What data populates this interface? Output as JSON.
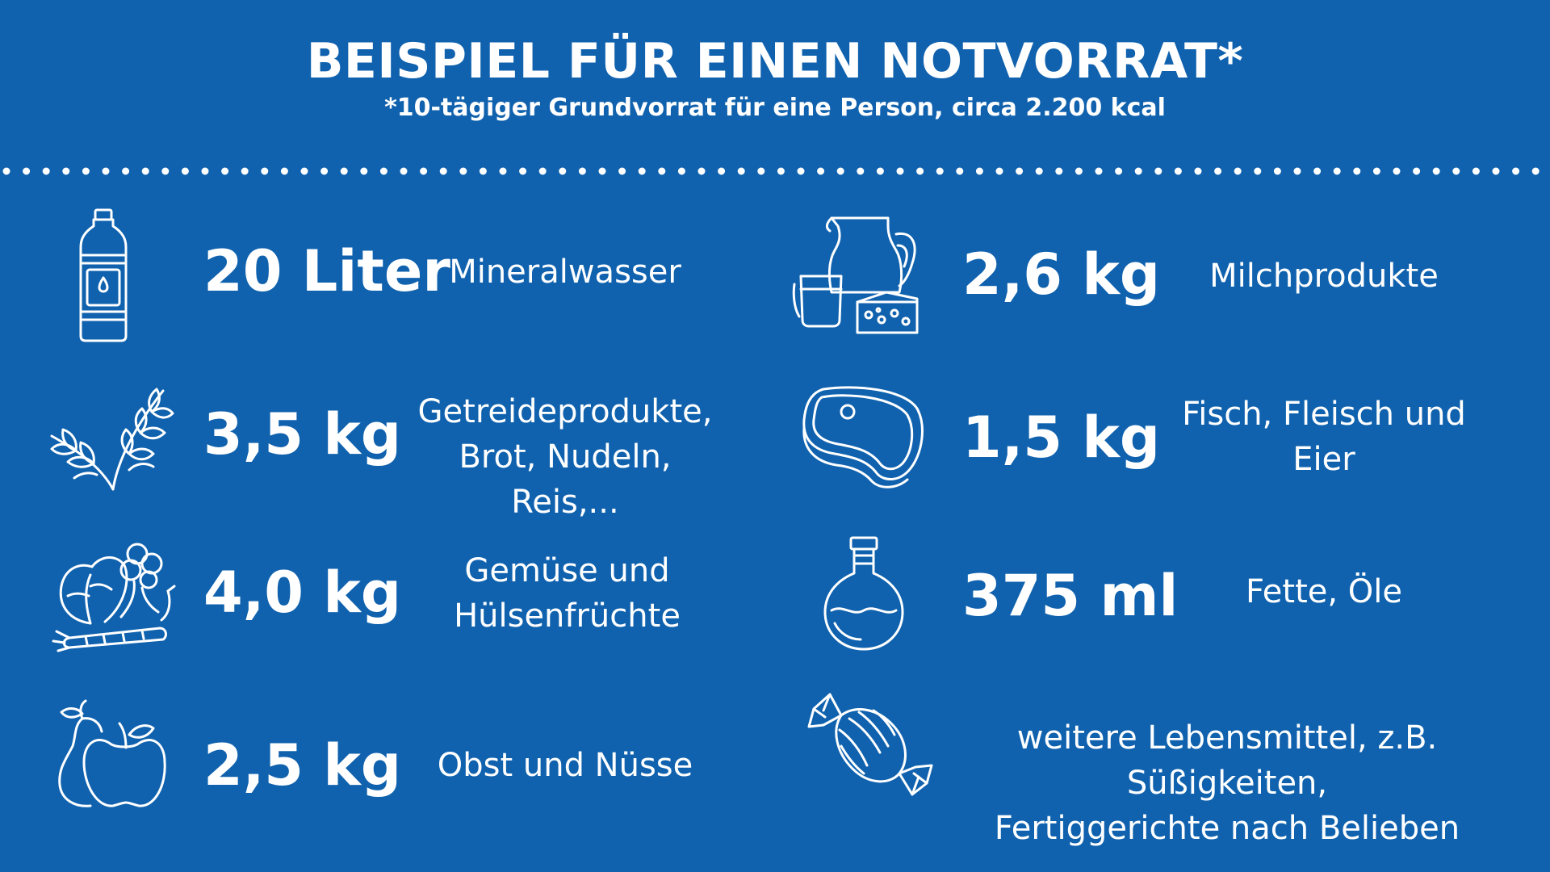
{
  "header": {
    "title": "BEISPIEL FÜR EINEN NOTVORRAT*",
    "subtitle": "*10-tägiger Grundvorrat für eine Person, circa 2.200 kcal"
  },
  "items": [
    {
      "icon": "water-bottle-icon",
      "amount": "20 Liter",
      "desc": [
        "Mineralwasser"
      ]
    },
    {
      "icon": "wheat-icon",
      "amount": "3,5 kg",
      "desc": [
        "Getreideprodukte,",
        "Brot, Nudeln, Reis,..."
      ]
    },
    {
      "icon": "vegetables-icon",
      "amount": "4,0 kg",
      "desc": [
        "Gemüse und",
        "Hülsenfrüchte"
      ]
    },
    {
      "icon": "fruit-icon",
      "amount": "2,5 kg",
      "desc": [
        "Obst und Nüsse"
      ]
    },
    {
      "icon": "dairy-icon",
      "amount": "2,6 kg",
      "desc": [
        "Milchprodukte"
      ]
    },
    {
      "icon": "steak-icon",
      "amount": "1,5 kg",
      "desc": [
        "Fisch, Fleisch und",
        "Eier"
      ]
    },
    {
      "icon": "oil-bottle-icon",
      "amount": "375 ml",
      "desc": [
        "Fette, Öle"
      ]
    },
    {
      "icon": "candy-icon",
      "amount": "",
      "desc": [
        "weitere Lebensmittel, z.B. Süßigkeiten,",
        "Fertiggerichte nach Belieben"
      ]
    }
  ],
  "colors": {
    "background": "#1062ae",
    "foreground": "#ffffff"
  }
}
